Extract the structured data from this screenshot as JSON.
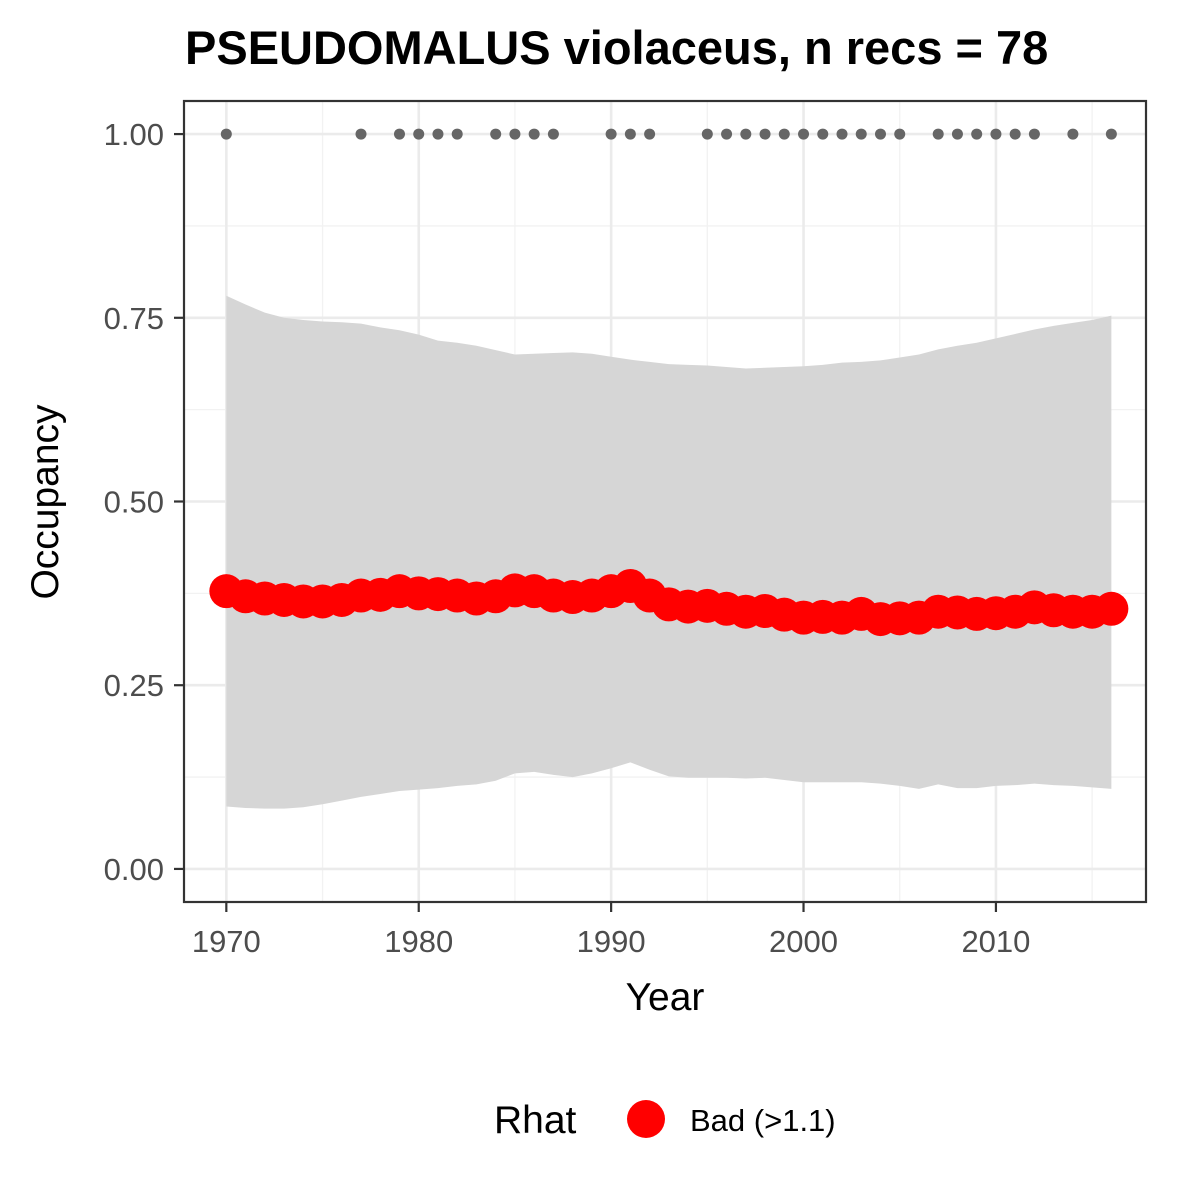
{
  "chart_data": {
    "type": "line",
    "title": "PSEUDOMALUS violaceus, n recs = 78",
    "xlabel": "Year",
    "ylabel": "Occupancy",
    "xlim": [
      1967.8,
      2017.8
    ],
    "ylim": [
      -0.045,
      1.045
    ],
    "x_ticks": [
      1970,
      1980,
      1990,
      2000,
      2010
    ],
    "y_ticks": [
      0.0,
      0.25,
      0.5,
      0.75,
      1.0
    ],
    "y_tick_labels": [
      "0.00",
      "0.25",
      "0.50",
      "0.75",
      "1.00"
    ],
    "grid": true,
    "years": [
      1970,
      1971,
      1972,
      1973,
      1974,
      1975,
      1976,
      1977,
      1978,
      1979,
      1980,
      1981,
      1982,
      1983,
      1984,
      1985,
      1986,
      1987,
      1988,
      1989,
      1990,
      1991,
      1992,
      1993,
      1994,
      1995,
      1996,
      1997,
      1998,
      1999,
      2000,
      2001,
      2002,
      2003,
      2004,
      2005,
      2006,
      2007,
      2008,
      2009,
      2010,
      2011,
      2012,
      2013,
      2014,
      2015,
      2016
    ],
    "series": [
      {
        "role": "mean",
        "color": "#ff0000",
        "values": [
          0.378,
          0.371,
          0.368,
          0.366,
          0.364,
          0.364,
          0.366,
          0.372,
          0.373,
          0.378,
          0.375,
          0.374,
          0.372,
          0.368,
          0.371,
          0.379,
          0.378,
          0.372,
          0.37,
          0.372,
          0.378,
          0.385,
          0.372,
          0.36,
          0.357,
          0.358,
          0.354,
          0.35,
          0.351,
          0.346,
          0.342,
          0.343,
          0.342,
          0.347,
          0.34,
          0.341,
          0.342,
          0.35,
          0.349,
          0.347,
          0.348,
          0.35,
          0.356,
          0.352,
          0.35,
          0.35,
          0.354
        ]
      },
      {
        "role": "upper_ci",
        "color": "#d6d6d6",
        "values": [
          0.78,
          0.768,
          0.757,
          0.75,
          0.747,
          0.745,
          0.744,
          0.742,
          0.737,
          0.733,
          0.727,
          0.719,
          0.716,
          0.712,
          0.706,
          0.7,
          0.701,
          0.702,
          0.703,
          0.701,
          0.697,
          0.693,
          0.69,
          0.687,
          0.686,
          0.685,
          0.683,
          0.681,
          0.682,
          0.683,
          0.684,
          0.686,
          0.689,
          0.69,
          0.692,
          0.696,
          0.7,
          0.707,
          0.712,
          0.716,
          0.722,
          0.728,
          0.734,
          0.739,
          0.743,
          0.747,
          0.753
        ]
      },
      {
        "role": "lower_ci",
        "color": "#d6d6d6",
        "values": [
          0.085,
          0.083,
          0.082,
          0.082,
          0.084,
          0.088,
          0.093,
          0.098,
          0.102,
          0.106,
          0.108,
          0.11,
          0.113,
          0.115,
          0.12,
          0.13,
          0.132,
          0.128,
          0.125,
          0.13,
          0.137,
          0.145,
          0.135,
          0.126,
          0.124,
          0.124,
          0.124,
          0.123,
          0.124,
          0.121,
          0.118,
          0.118,
          0.118,
          0.118,
          0.116,
          0.113,
          0.109,
          0.115,
          0.11,
          0.11,
          0.113,
          0.114,
          0.116,
          0.114,
          0.113,
          0.111,
          0.109
        ]
      }
    ],
    "detections": {
      "color": "#666666",
      "y": 1.0,
      "years": [
        1970,
        1977,
        1979,
        1980,
        1981,
        1982,
        1984,
        1985,
        1986,
        1987,
        1990,
        1991,
        1992,
        1995,
        1996,
        1997,
        1998,
        1999,
        2000,
        2001,
        2002,
        2003,
        2004,
        2005,
        2007,
        2008,
        2009,
        2010,
        2011,
        2012,
        2014,
        2016
      ]
    },
    "legend": {
      "title": "Rhat",
      "position": "bottom",
      "entries": [
        {
          "label": "Bad (>1.1)",
          "color": "#ff0000"
        }
      ]
    }
  }
}
